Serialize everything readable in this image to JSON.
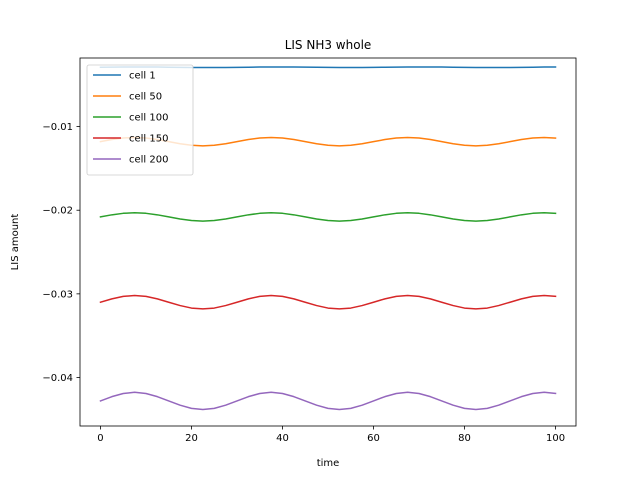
{
  "chart_data": {
    "type": "line",
    "title": "LIS NH3 whole",
    "xlabel": "time",
    "ylabel": "LIS amount",
    "xlim": [
      -4.5,
      104.5
    ],
    "ylim": [
      -0.0458,
      -0.0018
    ],
    "xticks": [
      0,
      20,
      40,
      60,
      80,
      100
    ],
    "xtick_labels": [
      "0",
      "20",
      "40",
      "60",
      "80",
      "100"
    ],
    "yticks": [
      -0.01,
      -0.02,
      -0.03,
      -0.04
    ],
    "ytick_labels": [
      "−0.01",
      "−0.02",
      "−0.03",
      "−0.04"
    ],
    "grid": false,
    "legend_position": "top-left",
    "x": [
      0,
      2.5,
      5,
      7.5,
      10,
      12.5,
      15,
      17.5,
      20,
      22.5,
      25,
      27.5,
      30,
      32.5,
      35,
      37.5,
      40,
      42.5,
      45,
      47.5,
      50,
      52.5,
      55,
      57.5,
      60,
      62.5,
      65,
      67.5,
      70,
      72.5,
      75,
      77.5,
      80,
      82.5,
      85,
      87.5,
      90,
      92.5,
      95,
      97.5,
      100
    ],
    "series": [
      {
        "name": "cell 1",
        "color": "#1f77b4",
        "values": [
          -0.0029,
          -0.00289,
          -0.00288,
          -0.00287,
          -0.00287,
          -0.00288,
          -0.0029,
          -0.00292,
          -0.00293,
          -0.00294,
          -0.00294,
          -0.00293,
          -0.00292,
          -0.0029,
          -0.00288,
          -0.00287,
          -0.00287,
          -0.00288,
          -0.00289,
          -0.00291,
          -0.00292,
          -0.00293,
          -0.00294,
          -0.00293,
          -0.00292,
          -0.00291,
          -0.00289,
          -0.00288,
          -0.00287,
          -0.00287,
          -0.00288,
          -0.0029,
          -0.00292,
          -0.00293,
          -0.00294,
          -0.00294,
          -0.00293,
          -0.00292,
          -0.0029,
          -0.00288,
          -0.00287
        ]
      },
      {
        "name": "cell 50",
        "color": "#ff7f0e",
        "values": [
          -0.0118,
          -0.01155,
          -0.01137,
          -0.0113,
          -0.01137,
          -0.01155,
          -0.0118,
          -0.01205,
          -0.01223,
          -0.0123,
          -0.01223,
          -0.01205,
          -0.0118,
          -0.01155,
          -0.01137,
          -0.0113,
          -0.01137,
          -0.01155,
          -0.0118,
          -0.01205,
          -0.01223,
          -0.0123,
          -0.01223,
          -0.01205,
          -0.0118,
          -0.01155,
          -0.01137,
          -0.0113,
          -0.01137,
          -0.01155,
          -0.0118,
          -0.01205,
          -0.01223,
          -0.0123,
          -0.01223,
          -0.01205,
          -0.0118,
          -0.01155,
          -0.01137,
          -0.0113,
          -0.01137
        ]
      },
      {
        "name": "cell 100",
        "color": "#2ca02c",
        "values": [
          -0.0208,
          -0.02055,
          -0.02037,
          -0.0203,
          -0.02037,
          -0.02055,
          -0.0208,
          -0.02105,
          -0.02123,
          -0.0213,
          -0.02123,
          -0.02105,
          -0.0208,
          -0.02055,
          -0.02037,
          -0.0203,
          -0.02037,
          -0.02055,
          -0.0208,
          -0.02105,
          -0.02123,
          -0.0213,
          -0.02123,
          -0.02105,
          -0.0208,
          -0.02055,
          -0.02037,
          -0.0203,
          -0.02037,
          -0.02055,
          -0.0208,
          -0.02105,
          -0.02123,
          -0.0213,
          -0.02123,
          -0.02105,
          -0.0208,
          -0.02055,
          -0.02037,
          -0.0203,
          -0.02037
        ]
      },
      {
        "name": "cell 150",
        "color": "#d62728",
        "values": [
          -0.031,
          -0.0306,
          -0.0303,
          -0.0302,
          -0.0303,
          -0.0306,
          -0.031,
          -0.0314,
          -0.0317,
          -0.0318,
          -0.0317,
          -0.0314,
          -0.031,
          -0.0306,
          -0.0303,
          -0.0302,
          -0.0303,
          -0.0306,
          -0.031,
          -0.0314,
          -0.0317,
          -0.0318,
          -0.0317,
          -0.0314,
          -0.031,
          -0.0306,
          -0.0303,
          -0.0302,
          -0.0303,
          -0.0306,
          -0.031,
          -0.0314,
          -0.0317,
          -0.0318,
          -0.0317,
          -0.0314,
          -0.031,
          -0.0306,
          -0.0303,
          -0.0302,
          -0.0303
        ]
      },
      {
        "name": "cell 200",
        "color": "#9467bd",
        "values": [
          -0.0428,
          -0.04229,
          -0.04191,
          -0.04177,
          -0.04191,
          -0.04229,
          -0.0428,
          -0.04331,
          -0.04369,
          -0.04383,
          -0.04369,
          -0.04331,
          -0.0428,
          -0.04229,
          -0.04191,
          -0.04177,
          -0.04191,
          -0.04229,
          -0.0428,
          -0.04331,
          -0.04369,
          -0.04383,
          -0.04369,
          -0.04331,
          -0.0428,
          -0.04229,
          -0.04191,
          -0.04177,
          -0.04191,
          -0.04229,
          -0.0428,
          -0.04331,
          -0.04369,
          -0.04383,
          -0.04369,
          -0.04331,
          -0.0428,
          -0.04229,
          -0.04191,
          -0.04177,
          -0.04191
        ]
      }
    ]
  }
}
